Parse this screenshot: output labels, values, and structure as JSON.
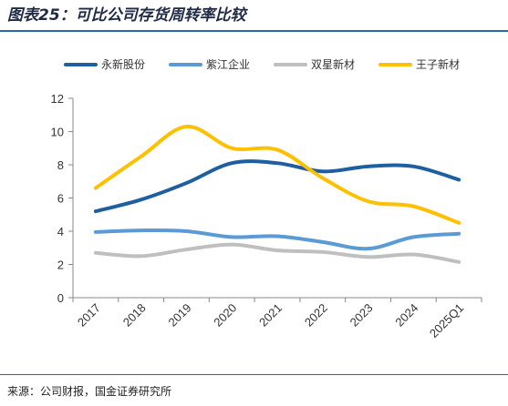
{
  "title": "图表25：可比公司存货周转率比较",
  "source": "来源：公司财报，国金证券研究所",
  "chart_data": {
    "type": "line",
    "categories": [
      "2017",
      "2018",
      "2019",
      "2020",
      "2021",
      "2022",
      "2023",
      "2024",
      "2025Q1"
    ],
    "ylim": [
      0,
      12
    ],
    "yticks": [
      0,
      2,
      4,
      6,
      8,
      10,
      12
    ],
    "grid": false,
    "legend_position": "top",
    "series": [
      {
        "name": "永新股份",
        "color": "#1f5fa0",
        "values": [
          5.2,
          5.9,
          6.9,
          8.1,
          8.1,
          7.6,
          7.9,
          7.9,
          7.1
        ]
      },
      {
        "name": "紫江企业",
        "color": "#5b9bd5",
        "values": [
          3.95,
          4.05,
          4.0,
          3.65,
          3.7,
          3.35,
          2.95,
          3.65,
          3.85
        ]
      },
      {
        "name": "双星新材",
        "color": "#bfbfbf",
        "values": [
          2.7,
          2.5,
          2.9,
          3.2,
          2.85,
          2.75,
          2.45,
          2.6,
          2.15
        ]
      },
      {
        "name": "王子新材",
        "color": "#ffc000",
        "values": [
          6.6,
          8.5,
          10.3,
          9.0,
          8.9,
          7.2,
          5.8,
          5.5,
          4.5
        ]
      }
    ]
  }
}
